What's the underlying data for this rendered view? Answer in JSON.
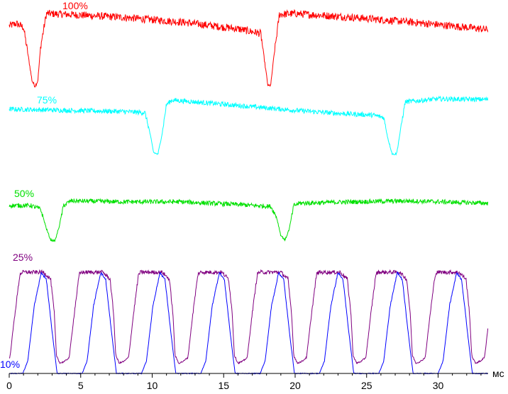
{
  "chart_data": {
    "type": "line",
    "x_unit": "мс",
    "xlim": [
      0,
      33.5
    ],
    "x_ticks": [
      0,
      5,
      10,
      15,
      20,
      25,
      30
    ],
    "x_tick_labels": [
      "0",
      "5",
      "10",
      "15",
      "20",
      "25",
      "30"
    ],
    "grid": false,
    "series": [
      {
        "name": "100%",
        "color": "#ff0000",
        "x": [
          0,
          0.5,
          1.0,
          1.35,
          1.6,
          1.8,
          2.0,
          2.2,
          2.6,
          4,
          8,
          12,
          16,
          17.6,
          17.9,
          18.1,
          18.3,
          18.5,
          18.9,
          20,
          24,
          28,
          32,
          33.5
        ],
        "y": [
          0.82,
          0.85,
          0.8,
          0.4,
          0.1,
          0.03,
          0.1,
          0.55,
          0.98,
          0.97,
          0.93,
          0.87,
          0.78,
          0.72,
          0.3,
          0.03,
          0.05,
          0.4,
          0.97,
          0.98,
          0.93,
          0.87,
          0.8,
          0.77
        ],
        "noise": 0.05
      },
      {
        "name": "75%",
        "color": "#00ffff",
        "x": [
          0,
          4,
          8,
          9.5,
          9.8,
          10.1,
          10.4,
          10.7,
          11.0,
          11.4,
          14,
          18,
          20,
          23,
          25.5,
          26.2,
          26.5,
          26.8,
          27.1,
          27.4,
          27.7,
          30,
          33.5
        ],
        "y": [
          0.8,
          0.78,
          0.76,
          0.74,
          0.45,
          0.08,
          0.05,
          0.4,
          0.88,
          0.95,
          0.9,
          0.82,
          0.78,
          0.73,
          0.7,
          0.66,
          0.3,
          0.05,
          0.06,
          0.5,
          0.92,
          0.97,
          0.96
        ],
        "noise": 0.04
      },
      {
        "name": "50%",
        "color": "#00e000",
        "x": [
          0,
          1.5,
          2.2,
          2.6,
          2.9,
          3.2,
          3.5,
          3.8,
          4.3,
          8,
          12,
          16,
          18.3,
          18.7,
          19.0,
          19.3,
          19.6,
          19.9,
          20.3,
          24,
          28,
          33.5
        ],
        "y": [
          0.8,
          0.8,
          0.72,
          0.3,
          0.05,
          0.03,
          0.35,
          0.8,
          0.9,
          0.88,
          0.88,
          0.82,
          0.78,
          0.55,
          0.15,
          0.05,
          0.3,
          0.8,
          0.85,
          0.88,
          0.9,
          0.85
        ],
        "noise": 0.05
      },
      {
        "name": "25%",
        "color": "#800080",
        "periodic": true,
        "period": 4.15,
        "phase": 0.05,
        "shape_x": [
          0,
          0.35,
          0.7,
          0.85,
          1.25,
          2.35,
          2.85,
          3.1,
          3.25,
          3.5,
          3.85,
          4.15
        ],
        "shape_y": [
          0.1,
          0.55,
          0.95,
          0.97,
          0.97,
          0.97,
          0.9,
          0.55,
          0.12,
          0.04,
          0.06,
          0.1
        ],
        "noise": 0.02
      },
      {
        "name": "10%",
        "color": "#0000ff",
        "periodic": true,
        "period": 4.15,
        "phase": 0.05,
        "shape_x": [
          0,
          0.9,
          1.25,
          1.7,
          2.2,
          2.55,
          2.95,
          3.3,
          3.7,
          4.15
        ],
        "shape_y": [
          0.0,
          0.0,
          0.12,
          0.65,
          0.97,
          0.9,
          0.4,
          0.0,
          0.0,
          0.0
        ],
        "noise": 0.01
      }
    ]
  }
}
